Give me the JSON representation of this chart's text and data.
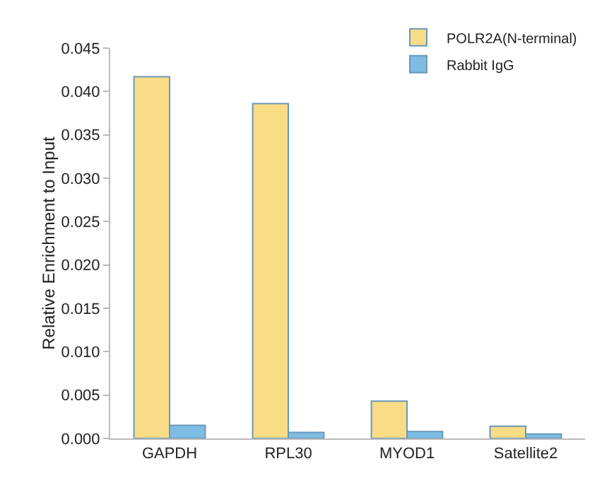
{
  "chart_data": {
    "type": "bar",
    "ylabel": "Relative Enrichment to Input",
    "categories": [
      "GAPDH",
      "RPL30",
      "MYOD1",
      "Satellite2"
    ],
    "series": [
      {
        "name": "POLR2A(N-terminal)",
        "color": "#f9dc86",
        "values": [
          0.0417,
          0.0386,
          0.0043,
          0.0014
        ]
      },
      {
        "name": "Rabbit IgG",
        "color": "#7dbde3",
        "values": [
          0.0015,
          0.0007,
          0.0008,
          0.0005
        ]
      }
    ],
    "ylim": [
      0,
      0.045
    ],
    "yticks": [
      {
        "value": 0,
        "label": "0.000"
      },
      {
        "value": 0.005,
        "label": "0.005"
      },
      {
        "value": 0.01,
        "label": "0.010"
      },
      {
        "value": 0.015,
        "label": "0.015"
      },
      {
        "value": 0.02,
        "label": "0.020"
      },
      {
        "value": 0.025,
        "label": "0.025"
      },
      {
        "value": 0.03,
        "label": "0.030"
      },
      {
        "value": 0.035,
        "label": "0.035"
      },
      {
        "value": 0.04,
        "label": "0.040"
      },
      {
        "value": 0.045,
        "label": "0.045"
      }
    ],
    "grid": false,
    "legend": "top right"
  }
}
